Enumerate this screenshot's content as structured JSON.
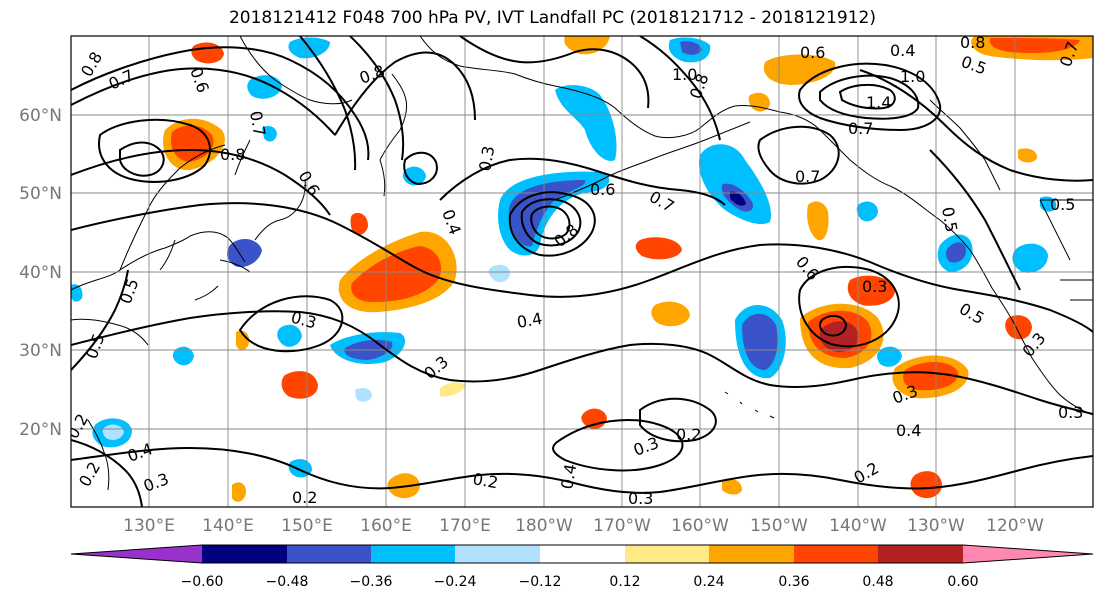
{
  "title": "2018121412 F048 700 hPa PV, IVT Landfall PC (2018121712 - 2018121912)",
  "lat_labels": [
    "60°N",
    "50°N",
    "40°N",
    "30°N",
    "20°N"
  ],
  "lon_labels": [
    "130°E",
    "140°E",
    "150°E",
    "160°E",
    "170°E",
    "180°W",
    "170°W",
    "160°W",
    "150°W",
    "140°W",
    "130°W",
    "120°W"
  ],
  "contour_labels": [
    "0.8",
    "0.7",
    "0.6",
    "0.8",
    "0.7",
    "0.8",
    "0.6",
    "0.3",
    "0.4",
    "0.6",
    "0.7",
    "0.8",
    "1.0",
    "0.8",
    "0.6",
    "0.4",
    "1.4",
    "1.0",
    "0.7",
    "0.8",
    "0.5",
    "0.7",
    "0.7",
    "0.6",
    "0.5",
    "0.3",
    "0.4",
    "0.5",
    "0.3",
    "0.3",
    "0.5",
    "0.3",
    "0.2",
    "0.3",
    "0.4",
    "0.2",
    "0.3",
    "0.2",
    "0.4",
    "0.3",
    "0.2",
    "0.4",
    "0.3",
    "0.3",
    "0.2",
    "0.2",
    "0.5",
    "0.5"
  ],
  "colorbar": {
    "ticks": [
      "−0.60",
      "−0.48",
      "−0.36",
      "−0.24",
      "−0.12",
      "0.12",
      "0.24",
      "0.36",
      "0.48",
      "0.60"
    ],
    "colors": [
      "#9932cc",
      "#000080",
      "#3a53c8",
      "#00bfff",
      "#b0e2ff",
      "#ffffff",
      "#ffea85",
      "#ffa500",
      "#ff4500",
      "#b22222",
      "#ff88b0"
    ]
  },
  "fill_colors": {
    "neg_strong": "#3a53c8",
    "neg_darkest": "#000080",
    "neg_mid": "#00bfff",
    "neg_light": "#b0e2ff",
    "pos_light": "#ffea85",
    "pos_mid": "#ffa500",
    "pos_strong": "#ff4500",
    "pos_darkest": "#b22222"
  }
}
